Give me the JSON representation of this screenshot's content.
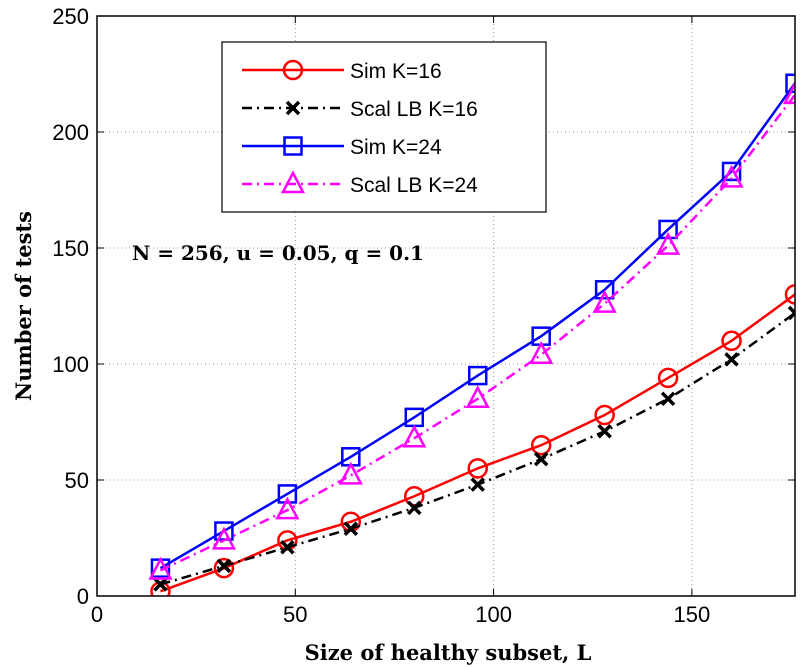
{
  "chart_data": {
    "type": "line",
    "xlabel": "Size of healthy subset, L",
    "ylabel": "Number of tests",
    "xlim": [
      0,
      176
    ],
    "ylim": [
      0,
      250
    ],
    "xticks": [
      0,
      50,
      100,
      150
    ],
    "yticks": [
      0,
      50,
      100,
      150,
      200,
      250
    ],
    "grid": true,
    "legend_position": "top-left",
    "annotation": "N = 256, u = 0.05, q = 0.1",
    "x": [
      16,
      32,
      48,
      64,
      80,
      96,
      112,
      128,
      144,
      160,
      176
    ],
    "series": [
      {
        "name": "Sim K=16",
        "color": "#ff0000",
        "line": "solid",
        "marker": "circle",
        "values": [
          2,
          12,
          24,
          32,
          43,
          55,
          65,
          78,
          94,
          110,
          130
        ]
      },
      {
        "name": "Scal LB K=16",
        "color": "#000000",
        "line": "dashdot",
        "marker": "x",
        "values": [
          5,
          13,
          21,
          29,
          38,
          48,
          59,
          71,
          85,
          102,
          122
        ]
      },
      {
        "name": "Sim K=24",
        "color": "#0000ff",
        "line": "solid",
        "marker": "square",
        "values": [
          12,
          28,
          44,
          60,
          77,
          95,
          112,
          132,
          158,
          183,
          221
        ]
      },
      {
        "name": "Scal LB K=24",
        "color": "#ff00ff",
        "line": "dashdot",
        "marker": "triangle",
        "values": [
          11,
          24,
          37,
          52,
          68,
          85,
          104,
          126,
          151,
          180,
          216
        ]
      }
    ]
  }
}
